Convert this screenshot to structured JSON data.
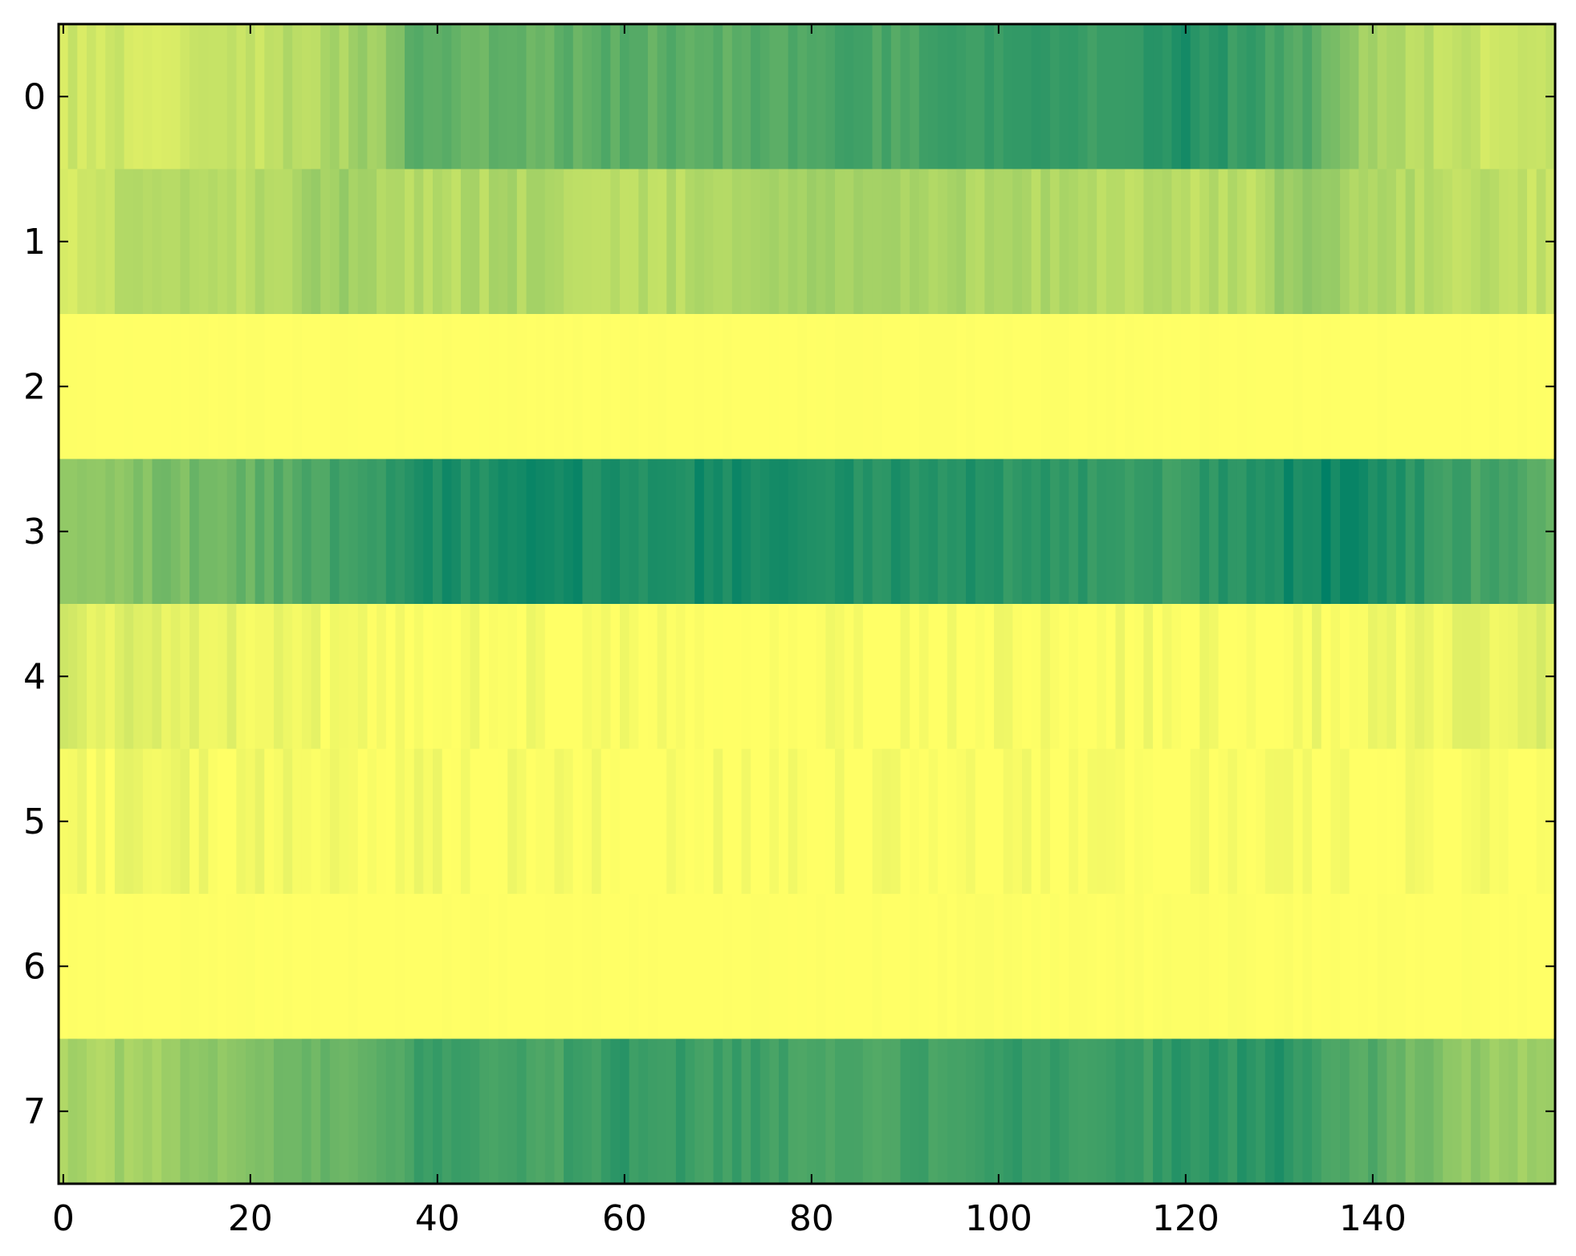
{
  "chart_data": {
    "type": "heatmap",
    "title": "",
    "xlabel": "",
    "ylabel": "",
    "rows": 8,
    "columns": 160,
    "xlim": [
      -0.5,
      159.5
    ],
    "ylim": [
      7.5,
      -0.5
    ],
    "x_ticks": [
      0,
      20,
      40,
      60,
      80,
      100,
      120,
      140
    ],
    "x_tick_labels": [
      "0",
      "20",
      "40",
      "60",
      "80",
      "100",
      "120",
      "140"
    ],
    "y_ticks": [
      0,
      1,
      2,
      3,
      4,
      5,
      6,
      7
    ],
    "y_tick_labels": [
      "0",
      "1",
      "2",
      "3",
      "4",
      "5",
      "6",
      "7"
    ],
    "colormap": "summer_r",
    "color_range": [
      0,
      1
    ],
    "colors": {
      "low": "#ffff66",
      "high": "#008066",
      "frame": "#000000",
      "background": "#ffffff"
    },
    "grid": false,
    "legend": "none",
    "row_profiles": [
      {
        "row": 0,
        "control_columns": [
          0,
          10,
          20,
          30,
          36,
          37,
          50,
          60,
          70,
          80,
          90,
          100,
          110,
          121,
          125,
          132,
          135,
          140,
          150,
          159
        ],
        "control_values": [
          0.2,
          0.18,
          0.22,
          0.35,
          0.45,
          0.62,
          0.6,
          0.65,
          0.62,
          0.7,
          0.72,
          0.78,
          0.74,
          0.88,
          0.8,
          0.7,
          0.55,
          0.35,
          0.22,
          0.2
        ]
      },
      {
        "row": 1,
        "control_columns": [
          0,
          10,
          20,
          30,
          36,
          37,
          50,
          60,
          70,
          80,
          90,
          100,
          110,
          120,
          128,
          132,
          140,
          150,
          159
        ],
        "control_values": [
          0.18,
          0.3,
          0.28,
          0.42,
          0.3,
          0.28,
          0.32,
          0.28,
          0.3,
          0.38,
          0.36,
          0.32,
          0.3,
          0.26,
          0.28,
          0.45,
          0.3,
          0.28,
          0.22
        ]
      },
      {
        "row": 2,
        "control_columns": [
          0,
          40,
          80,
          120,
          159
        ],
        "control_values": [
          0.0,
          0.0,
          0.0,
          0.0,
          0.0
        ]
      },
      {
        "row": 3,
        "control_columns": [
          0,
          10,
          20,
          30,
          40,
          55,
          60,
          70,
          80,
          90,
          100,
          110,
          120,
          128,
          135,
          140,
          150,
          159
        ],
        "control_values": [
          0.4,
          0.5,
          0.6,
          0.75,
          0.88,
          0.92,
          0.86,
          0.92,
          0.86,
          0.88,
          0.84,
          0.8,
          0.78,
          0.9,
          0.96,
          0.9,
          0.75,
          0.62
        ]
      },
      {
        "row": 4,
        "control_columns": [
          0,
          10,
          20,
          30,
          40,
          80,
          120,
          140,
          150,
          159
        ],
        "control_values": [
          0.15,
          0.1,
          0.08,
          0.04,
          0.02,
          0.01,
          0.02,
          0.04,
          0.08,
          0.12
        ]
      },
      {
        "row": 5,
        "control_columns": [
          0,
          10,
          20,
          30,
          40,
          52,
          80,
          120,
          159
        ],
        "control_values": [
          0.03,
          0.05,
          0.04,
          0.03,
          0.02,
          0.01,
          0.0,
          0.01,
          0.0
        ]
      },
      {
        "row": 6,
        "control_columns": [
          0,
          40,
          80,
          120,
          159
        ],
        "control_values": [
          0.0,
          0.0,
          0.0,
          0.01,
          0.0
        ]
      },
      {
        "row": 7,
        "control_columns": [
          0,
          10,
          20,
          30,
          40,
          50,
          60,
          70,
          80,
          90,
          100,
          110,
          120,
          130,
          140,
          150,
          159
        ],
        "control_values": [
          0.32,
          0.38,
          0.5,
          0.62,
          0.78,
          0.7,
          0.8,
          0.76,
          0.74,
          0.72,
          0.78,
          0.74,
          0.82,
          0.84,
          0.66,
          0.44,
          0.35
        ]
      }
    ]
  }
}
